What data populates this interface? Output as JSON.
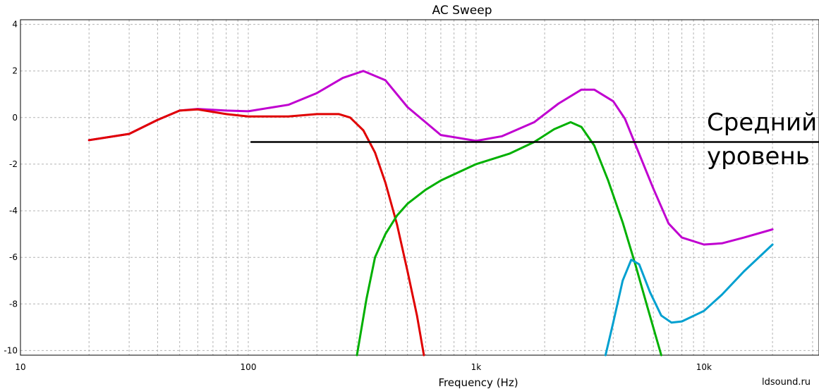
{
  "chart_data": {
    "type": "line",
    "title": "AC Sweep",
    "xlabel": "Frequency (Hz)",
    "ylabel": "",
    "x_scale": "log",
    "xlim": [
      10,
      32000
    ],
    "ylim": [
      -10.2,
      4.2
    ],
    "grid": true,
    "x_ticks": [
      {
        "value": 10,
        "label": "10"
      },
      {
        "value": 100,
        "label": "100"
      },
      {
        "value": 1000,
        "label": "1k"
      },
      {
        "value": 10000,
        "label": "10k"
      }
    ],
    "y_ticks": [
      {
        "value": 4,
        "label": "4"
      },
      {
        "value": 2,
        "label": "2"
      },
      {
        "value": 0,
        "label": "0"
      },
      {
        "value": -2,
        "label": "-2"
      },
      {
        "value": -4,
        "label": "-4"
      },
      {
        "value": -6,
        "label": "-6"
      },
      {
        "value": -8,
        "label": "-8"
      },
      {
        "value": -10,
        "label": "-10"
      }
    ],
    "series": [
      {
        "color": "#c000d0",
        "points": [
          [
            20,
            -0.97
          ],
          [
            30,
            -0.7
          ],
          [
            40,
            -0.1
          ],
          [
            50,
            0.3
          ],
          [
            60,
            0.37
          ],
          [
            80,
            0.3
          ],
          [
            100,
            0.27
          ],
          [
            150,
            0.55
          ],
          [
            200,
            1.05
          ],
          [
            260,
            1.7
          ],
          [
            320,
            2.0
          ],
          [
            400,
            1.6
          ],
          [
            500,
            0.45
          ],
          [
            700,
            -0.75
          ],
          [
            1000,
            -1.0
          ],
          [
            1300,
            -0.8
          ],
          [
            1800,
            -0.2
          ],
          [
            2300,
            0.6
          ],
          [
            2900,
            1.2
          ],
          [
            3300,
            1.2
          ],
          [
            4000,
            0.7
          ],
          [
            4500,
            -0.05
          ],
          [
            5000,
            -1.15
          ],
          [
            6000,
            -3.05
          ],
          [
            7000,
            -4.55
          ],
          [
            8000,
            -5.15
          ],
          [
            10000,
            -5.45
          ],
          [
            12000,
            -5.4
          ],
          [
            15000,
            -5.15
          ],
          [
            20000,
            -4.8
          ]
        ]
      },
      {
        "color": "#e00000",
        "points": [
          [
            20,
            -0.97
          ],
          [
            30,
            -0.7
          ],
          [
            40,
            -0.1
          ],
          [
            50,
            0.3
          ],
          [
            60,
            0.35
          ],
          [
            80,
            0.15
          ],
          [
            100,
            0.05
          ],
          [
            150,
            0.05
          ],
          [
            200,
            0.15
          ],
          [
            250,
            0.15
          ],
          [
            280,
            0.0
          ],
          [
            320,
            -0.55
          ],
          [
            360,
            -1.5
          ],
          [
            400,
            -2.8
          ],
          [
            450,
            -4.6
          ],
          [
            500,
            -6.6
          ],
          [
            550,
            -8.5
          ],
          [
            590,
            -10.2
          ]
        ]
      },
      {
        "color": "#00b000",
        "points": [
          [
            300,
            -10.2
          ],
          [
            330,
            -7.8
          ],
          [
            360,
            -6.0
          ],
          [
            400,
            -5.0
          ],
          [
            450,
            -4.2
          ],
          [
            500,
            -3.7
          ],
          [
            600,
            -3.1
          ],
          [
            700,
            -2.7
          ],
          [
            1000,
            -2.0
          ],
          [
            1400,
            -1.55
          ],
          [
            1800,
            -1.05
          ],
          [
            2200,
            -0.5
          ],
          [
            2600,
            -0.2
          ],
          [
            2900,
            -0.4
          ],
          [
            3300,
            -1.2
          ],
          [
            3800,
            -2.7
          ],
          [
            4400,
            -4.5
          ],
          [
            5000,
            -6.3
          ],
          [
            5600,
            -8.0
          ],
          [
            6500,
            -10.2
          ]
        ]
      },
      {
        "color": "#00a0d0",
        "points": [
          [
            3700,
            -10.2
          ],
          [
            4000,
            -8.8
          ],
          [
            4400,
            -7.0
          ],
          [
            4800,
            -6.1
          ],
          [
            5200,
            -6.3
          ],
          [
            5800,
            -7.5
          ],
          [
            6500,
            -8.5
          ],
          [
            7200,
            -8.8
          ],
          [
            8000,
            -8.75
          ],
          [
            10000,
            -8.3
          ],
          [
            12000,
            -7.6
          ],
          [
            15000,
            -6.6
          ],
          [
            20000,
            -5.45
          ]
        ]
      },
      {
        "color": "#000000",
        "points": [
          [
            103,
            -1.05
          ],
          [
            32000,
            -1.05
          ]
        ]
      }
    ],
    "annotation": {
      "line1": "Средний",
      "line2": "уровень"
    }
  },
  "watermark": "ldsound.ru"
}
